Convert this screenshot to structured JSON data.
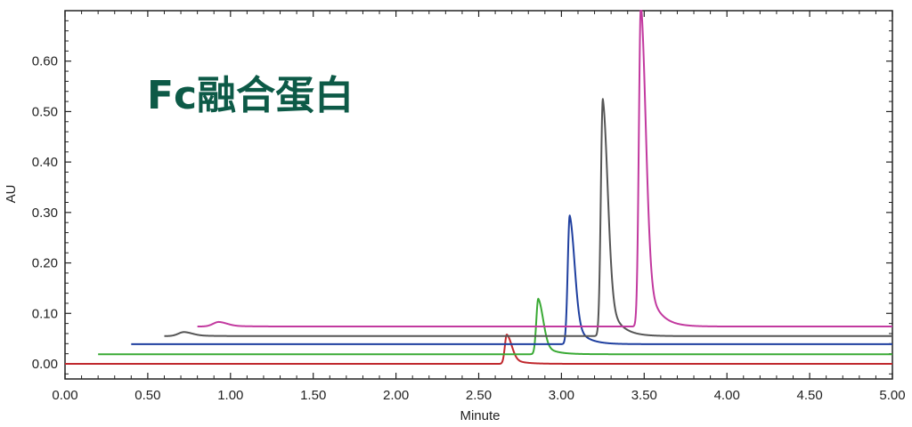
{
  "chart_data": {
    "type": "line",
    "title": "Fc融合蛋白",
    "xlabel": "Minute",
    "ylabel": "AU",
    "xlim": [
      0.0,
      5.0
    ],
    "ylim": [
      -0.03,
      0.7
    ],
    "x_ticks": [
      "0.00",
      "0.50",
      "1.00",
      "1.50",
      "2.00",
      "2.50",
      "3.00",
      "3.50",
      "4.00",
      "4.50",
      "5.00"
    ],
    "y_ticks": [
      "0.00",
      "0.10",
      "0.20",
      "0.30",
      "0.40",
      "0.50",
      "0.60"
    ],
    "grid": false,
    "legend": "none",
    "colors": {
      "title": "#0d5a47",
      "axis": "#222222",
      "red": "#c0282d",
      "green": "#3aaa35",
      "blue": "#1f3f9f",
      "gray": "#555555",
      "magenta": "#c2399f"
    },
    "series": [
      {
        "color": "red",
        "x_start": 0.0,
        "x_end": 5.0,
        "baseline": 0.0,
        "peaks": [
          {
            "x": 2.67,
            "height": 0.058
          }
        ]
      },
      {
        "color": "green",
        "x_start": 0.2,
        "x_end": 5.0,
        "baseline": 0.019,
        "peaks": [
          {
            "x": 2.86,
            "height": 0.11
          }
        ]
      },
      {
        "color": "blue",
        "x_start": 0.4,
        "x_end": 5.0,
        "baseline": 0.039,
        "peaks": [
          {
            "x": 3.05,
            "height": 0.255
          }
        ]
      },
      {
        "color": "gray",
        "x_start": 0.6,
        "x_end": 5.0,
        "baseline": 0.055,
        "peaks": [
          {
            "x": 0.72,
            "height": 0.008
          },
          {
            "x": 3.25,
            "height": 0.47
          }
        ]
      },
      {
        "color": "magenta",
        "x_start": 0.8,
        "x_end": 5.0,
        "baseline": 0.074,
        "peaks": [
          {
            "x": 0.93,
            "height": 0.009
          },
          {
            "x": 3.48,
            "height": 0.64
          }
        ]
      }
    ]
  }
}
